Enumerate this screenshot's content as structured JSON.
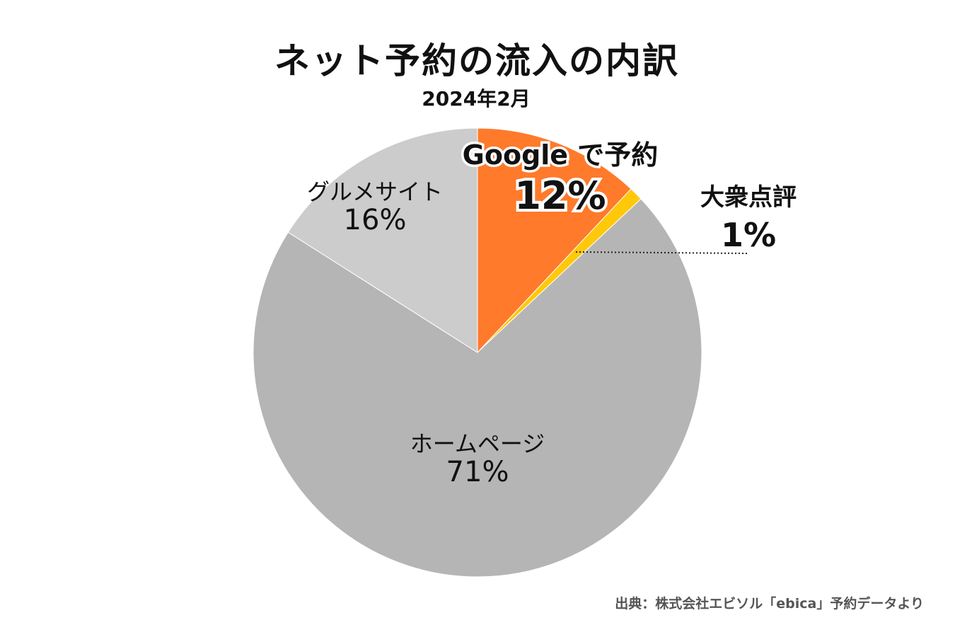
{
  "title": "ネット予約の流入の内訳",
  "subtitle": "2024年2月",
  "source": "出典：株式会社エビソル「ebica」予約データより",
  "chart_data": {
    "type": "pie",
    "start_angle_deg": 0,
    "direction": "clockwise",
    "slices": [
      {
        "label": "Google で予約",
        "value": 12,
        "value_label": "12%",
        "color": "#FF7A2B"
      },
      {
        "label": "大衆点評",
        "value": 1,
        "value_label": "1%",
        "color": "#FFC808"
      },
      {
        "label": "ホームページ",
        "value": 71,
        "value_label": "71%",
        "color": "#B5B5B5"
      },
      {
        "label": "グルメサイト",
        "value": 16,
        "value_label": "16%",
        "color": "#CCCCCC"
      }
    ]
  }
}
